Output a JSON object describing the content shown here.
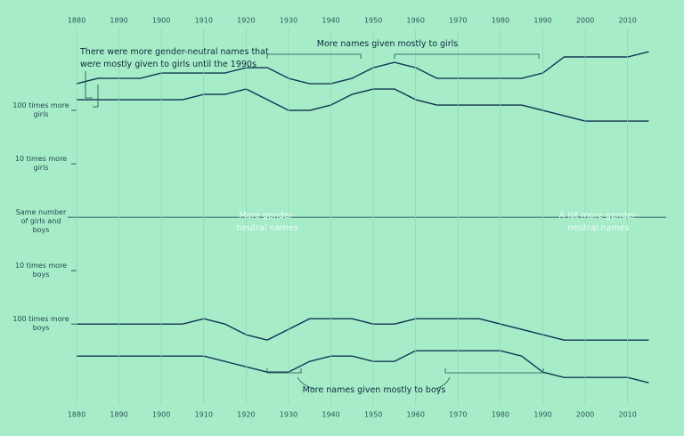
{
  "chart_data": {
    "type": "line",
    "annotations": [
      "There were more gender-neutral names that were mostly given to girls until the 1990s",
      "More names given mostly to girls",
      "More gender-neutral names",
      "A lot more gender-neutral names",
      "More names given mostly to boys"
    ],
    "x": [
      1880,
      1885,
      1890,
      1895,
      1900,
      1905,
      1910,
      1915,
      1920,
      1925,
      1930,
      1935,
      1940,
      1945,
      1950,
      1955,
      1960,
      1965,
      1970,
      1975,
      1980,
      1985,
      1990,
      1995,
      2000,
      2005,
      2010,
      2015
    ],
    "series": [
      {
        "color": "#123a55",
        "values": [
          2.5,
          2.6,
          2.6,
          2.6,
          2.7,
          2.7,
          2.7,
          2.7,
          2.8,
          2.8,
          2.6,
          2.5,
          2.5,
          2.6,
          2.8,
          2.9,
          2.8,
          2.6,
          2.6,
          2.6,
          2.6,
          2.6,
          2.7,
          3.0,
          3.0,
          3.0,
          3.0,
          3.1
        ]
      },
      {
        "color": "#0d3350",
        "values": [
          2.2,
          2.2,
          2.2,
          2.2,
          2.2,
          2.2,
          2.3,
          2.3,
          2.4,
          2.2,
          2.0,
          2.0,
          2.1,
          2.3,
          2.4,
          2.4,
          2.2,
          2.1,
          2.1,
          2.1,
          2.1,
          2.1,
          2.0,
          1.9,
          1.8,
          1.8,
          1.8,
          1.8
        ]
      },
      {
        "color": "#0d3350",
        "values": [
          -2.0,
          -2.0,
          -2.0,
          -2.0,
          -2.0,
          -2.0,
          -1.9,
          -2.0,
          -2.2,
          -2.3,
          -2.1,
          -1.9,
          -1.9,
          -1.9,
          -2.0,
          -2.0,
          -1.9,
          -1.9,
          -1.9,
          -1.9,
          -2.0,
          -2.1,
          -2.2,
          -2.3,
          -2.3,
          -2.3,
          -2.3,
          -2.3
        ]
      },
      {
        "color": "#123a55",
        "values": [
          -2.6,
          -2.6,
          -2.6,
          -2.6,
          -2.6,
          -2.6,
          -2.6,
          -2.7,
          -2.8,
          -2.9,
          -2.9,
          -2.7,
          -2.6,
          -2.6,
          -2.7,
          -2.7,
          -2.5,
          -2.5,
          -2.5,
          -2.5,
          -2.5,
          -2.6,
          -2.9,
          -3.0,
          -3.0,
          -3.0,
          -3.0,
          -3.1
        ]
      }
    ],
    "xlim": [
      1880,
      2017
    ],
    "xticks": [
      1880,
      1890,
      1900,
      1910,
      1920,
      1930,
      1940,
      1950,
      1960,
      1970,
      1980,
      1990,
      2000,
      2010
    ],
    "ylim": [
      -3.43,
      3.4
    ],
    "yticks": [
      {
        "value": 2,
        "label": "100 times more girls"
      },
      {
        "value": 1,
        "label": "10 times more girls"
      },
      {
        "value": 0,
        "label": "Same number of girls and boys"
      },
      {
        "value": -1,
        "label": "10 times more boys"
      },
      {
        "value": -2,
        "label": "100 times more boys"
      }
    ],
    "grid": "x",
    "zero_line": true
  }
}
